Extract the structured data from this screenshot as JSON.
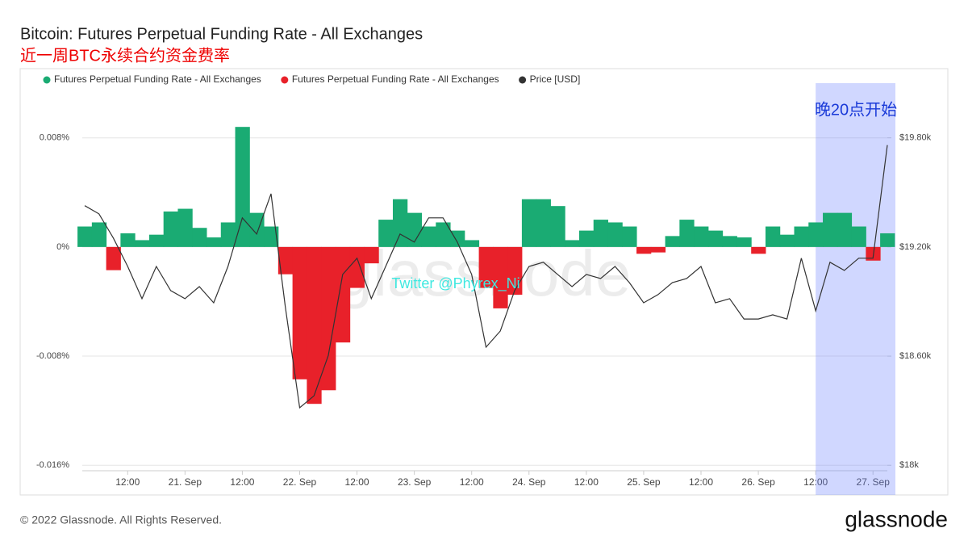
{
  "chart_data": {
    "type": "area",
    "title": "Bitcoin: Futures Perpetual Funding Rate - All Exchanges",
    "subtitle": "近一周BTC永续合约资金费率",
    "x": [
      3,
      6,
      9,
      12,
      15,
      18,
      21,
      24,
      27,
      30,
      33,
      36,
      39,
      42,
      45,
      48,
      51,
      54,
      57,
      60,
      63,
      66,
      69,
      72,
      75,
      78,
      81,
      84,
      87,
      90,
      93,
      96,
      99,
      102,
      105,
      108,
      111,
      114,
      117,
      120,
      123,
      126,
      129,
      132,
      135,
      138,
      141,
      144,
      147,
      150,
      153,
      156,
      159,
      162,
      165,
      168,
      171
    ],
    "xlim": [
      2.5,
      171
    ],
    "xticks": [
      {
        "value": 12,
        "label": "12:00"
      },
      {
        "value": 24,
        "label": "21. Sep"
      },
      {
        "value": 36,
        "label": "12:00"
      },
      {
        "value": 48,
        "label": "22. Sep"
      },
      {
        "value": 60,
        "label": "12:00"
      },
      {
        "value": 72,
        "label": "23. Sep"
      },
      {
        "value": 84,
        "label": "12:00"
      },
      {
        "value": 96,
        "label": "24. Sep"
      },
      {
        "value": 108,
        "label": "12:00"
      },
      {
        "value": 120,
        "label": "25. Sep"
      },
      {
        "value": 132,
        "label": "12:00"
      },
      {
        "value": 144,
        "label": "26. Sep"
      },
      {
        "value": 156,
        "label": "12:00"
      },
      {
        "value": 168,
        "label": "27. Sep"
      }
    ],
    "ylim": [
      -0.0164,
      0.011
    ],
    "yticks": [
      {
        "value": -0.016,
        "label": "-0.016%"
      },
      {
        "value": -0.008,
        "label": "-0.008%"
      },
      {
        "value": 0,
        "label": "0%"
      },
      {
        "value": 0.008,
        "label": "0.008%"
      }
    ],
    "y2lim": [
      17970,
      20025
    ],
    "y2ticks": [
      {
        "value": 18000,
        "label": "$18k"
      },
      {
        "value": 18600,
        "label": "$18.60k"
      },
      {
        "value": 19200,
        "label": "$19.20k"
      },
      {
        "value": 19800,
        "label": "$19.80k"
      }
    ],
    "grid": true,
    "series": [
      {
        "name": "Futures Perpetual Funding Rate - All Exchanges",
        "type": "area",
        "color": "#1aab73",
        "values": [
          0.0015,
          0.0018,
          null,
          0.001,
          0.0005,
          0.0009,
          0.0026,
          0.0028,
          0.0014,
          0.0007,
          0.0018,
          0.0088,
          0.0025,
          0.0015,
          null,
          null,
          null,
          null,
          null,
          null,
          null,
          0.002,
          0.0035,
          0.0025,
          0.0015,
          0.0018,
          0.0012,
          0.0005,
          null,
          null,
          null,
          0.0035,
          0.0035,
          0.003,
          0.0005,
          0.0012,
          0.002,
          0.0018,
          0.0015,
          null,
          null,
          0.0008,
          0.002,
          0.0015,
          0.0012,
          0.0008,
          0.0007,
          null,
          0.0015,
          0.0009,
          0.0015,
          0.0018,
          0.0025,
          0.0025,
          0.0015,
          null,
          0.001
        ]
      },
      {
        "name": "Futures Perpetual Funding Rate - All Exchanges",
        "type": "area",
        "color": "#e8212a",
        "values": [
          null,
          null,
          -0.0017,
          null,
          null,
          null,
          null,
          null,
          null,
          null,
          null,
          null,
          null,
          null,
          -0.002,
          -0.0097,
          -0.0115,
          -0.0105,
          -0.007,
          -0.003,
          -0.0012,
          null,
          null,
          null,
          null,
          null,
          null,
          null,
          -0.003,
          -0.0045,
          -0.0035,
          null,
          null,
          null,
          null,
          null,
          null,
          null,
          null,
          -0.0005,
          -0.0004,
          null,
          null,
          null,
          null,
          null,
          null,
          -0.0005,
          null,
          null,
          null,
          null,
          null,
          null,
          null,
          -0.001,
          null
        ]
      },
      {
        "name": "Price [USD]",
        "type": "line",
        "axis": "y2",
        "color": "#333333",
        "values": [
          19427,
          19382,
          19249,
          19093,
          18916,
          19093,
          18960,
          18916,
          18982,
          18893,
          19093,
          19360,
          19271,
          19493,
          18871,
          18316,
          18382,
          18604,
          19049,
          19138,
          18916,
          19093,
          19271,
          19227,
          19360,
          19360,
          19227,
          19049,
          18649,
          18738,
          18960,
          19093,
          19116,
          19049,
          18982,
          19049,
          19027,
          19093,
          19004,
          18893,
          18938,
          19004,
          19027,
          19093,
          18893,
          18916,
          18804,
          18804,
          18827,
          18804,
          19138,
          18849,
          19116,
          19071,
          19138,
          19138,
          19760
        ]
      }
    ],
    "highlight": {
      "x": [
        156,
        171
      ],
      "label": "晚20点开始"
    },
    "watermark": "glassnode",
    "annotation": "Twitter @Phyrex_Ni",
    "footer": "© 2022 Glassnode. All Rights Reserved.",
    "logo": "glassnode"
  }
}
